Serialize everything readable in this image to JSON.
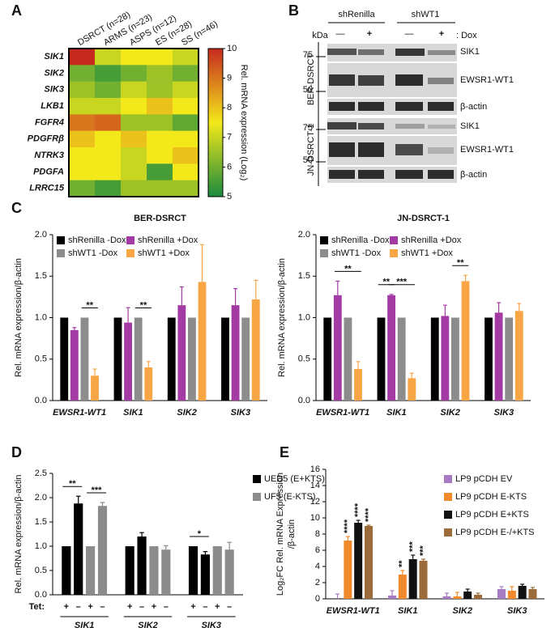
{
  "panels": [
    "A",
    "B",
    "C",
    "D",
    "E"
  ],
  "blot": {
    "groups": [
      "shRenilla",
      "shWT1"
    ],
    "kda": "kDa",
    "dox_signs": [
      "—",
      "+",
      "—",
      "+"
    ],
    "dox": ": Dox",
    "cell_lines": [
      {
        "name": "BER-DSRCT",
        "markers": [
          75,
          50
        ],
        "proteins": [
          "SIK1",
          "EWSR1-WT1",
          "β-actin"
        ]
      },
      {
        "name": "JN-DSRCT-1",
        "markers": [
          75,
          50
        ],
        "proteins": [
          "SIK1",
          "EWSR1-WT1",
          "β-actin"
        ]
      }
    ]
  },
  "chart_data": [
    {
      "type": "heatmap",
      "columns": [
        "DSRCT (n=28)",
        "ARMS (n=23)",
        "ASPS (n=12)",
        "ES (n=28)",
        "SS (n=46)"
      ],
      "rows": [
        "SIK1",
        "SIK2",
        "SIK3",
        "LKB1",
        "FGFR4",
        "PDGFRβ",
        "NTRK3",
        "PDGFA",
        "LRRC15"
      ],
      "values": [
        [
          10,
          7,
          7.5,
          7.5,
          7
        ],
        [
          6,
          5.5,
          6,
          6.5,
          6
        ],
        [
          6.5,
          6,
          7,
          6.5,
          7
        ],
        [
          7,
          7,
          7.5,
          8,
          7.5
        ],
        [
          9,
          9.2,
          6.5,
          6.5,
          5.8
        ],
        [
          8,
          7.5,
          8,
          7.5,
          7.5
        ],
        [
          7.5,
          7.5,
          7,
          7.5,
          8
        ],
        [
          7.5,
          7.5,
          7,
          5.5,
          7.5
        ],
        [
          6,
          5.5,
          6.5,
          6.5,
          6.5
        ]
      ],
      "zlim": [
        5,
        10
      ],
      "zticks": [
        10,
        9,
        8,
        7,
        6,
        5
      ],
      "colors": [
        "#1b8a3e",
        "#f3e81a",
        "#c62a1f"
      ],
      "colorbar_label": "Rel. mRNA expression (Log₂)"
    },
    {
      "type": "bar",
      "title": "BER-DSRCT",
      "ylabel": [
        "Rel. mRNA expression/β-actin"
      ],
      "categories": [
        "EWSR1-WT1",
        "SIK1",
        "SIK2",
        "SIK3"
      ],
      "ylim": [
        0,
        2
      ],
      "yticks": [
        {
          "value": 0,
          "label": "0.0"
        },
        {
          "value": 0.5,
          "label": "0.5"
        },
        {
          "value": 1,
          "label": "1.0"
        },
        {
          "value": 1.5,
          "label": "1.5"
        },
        {
          "value": 2,
          "label": "2.0"
        }
      ],
      "series": [
        {
          "name": "shRenilla -Dox",
          "color": "#000000",
          "values": [
            1,
            1,
            1,
            1
          ]
        },
        {
          "name": "shRenilla +Dox",
          "color": "#a43ba4",
          "values": [
            0.85,
            0.94,
            1.15,
            1.15
          ],
          "errors": [
            0.03,
            0.18,
            0.22,
            0.2
          ]
        },
        {
          "name": "shWT1 -Dox",
          "color": "#8c8c8c",
          "values": [
            1,
            1,
            1,
            1
          ]
        },
        {
          "name": "shWT1 +Dox",
          "color": "#f7a545",
          "values": [
            0.3,
            0.4,
            1.43,
            1.22
          ],
          "errors": [
            0.08,
            0.07,
            0.45,
            0.23
          ]
        }
      ],
      "annotations": [
        {
          "text": "**",
          "category": 0,
          "series": [
            2,
            3
          ]
        },
        {
          "text": "**",
          "category": 1,
          "series": [
            2,
            3
          ]
        }
      ]
    },
    {
      "type": "bar",
      "title": "JN-DSRCT-1",
      "ylabel": [
        "Rel. mRNA expression/β-actin"
      ],
      "categories": [
        "EWSR1-WT1",
        "SIK1",
        "SIK2",
        "SIK3"
      ],
      "ylim": [
        0,
        2
      ],
      "yticks": [
        {
          "value": 0,
          "label": "0.0"
        },
        {
          "value": 0.5,
          "label": "0.5"
        },
        {
          "value": 1,
          "label": "1.0"
        },
        {
          "value": 1.5,
          "label": "1.5"
        },
        {
          "value": 2,
          "label": "2.0"
        }
      ],
      "series": [
        {
          "name": "shRenilla -Dox",
          "color": "#000000",
          "values": [
            1,
            1,
            1,
            1
          ]
        },
        {
          "name": "shRenilla +Dox",
          "color": "#a43ba4",
          "values": [
            1.27,
            1.27,
            1.02,
            1.06
          ],
          "errors": [
            0.17,
            0.01,
            0.13,
            0.12
          ]
        },
        {
          "name": "shWT1 -Dox",
          "color": "#8c8c8c",
          "values": [
            1,
            1,
            1,
            1
          ]
        },
        {
          "name": "shWT1 +Dox",
          "color": "#f7a545",
          "values": [
            0.38,
            0.27,
            1.44,
            1.08
          ],
          "errors": [
            0.09,
            0.06,
            0.07,
            0.09
          ]
        }
      ],
      "annotations": [
        {
          "text": "**",
          "category": 0,
          "series": [
            1,
            3
          ]
        },
        {
          "text": "**",
          "category": 1,
          "series": [
            0,
            1
          ]
        },
        {
          "text": "***",
          "category": 1,
          "series": [
            1,
            3
          ]
        },
        {
          "text": "**",
          "category": 2,
          "series": [
            2,
            3
          ]
        }
      ]
    },
    {
      "type": "bar",
      "ylabel": [
        "Rel. mRNA expression/β-actin"
      ],
      "categories": [
        "SIK1",
        "SIK2",
        "SIK3"
      ],
      "condition_label": "Tet:",
      "conditions": [
        "+",
        "–"
      ],
      "ylim": [
        0,
        2.5
      ],
      "yticks": [
        {
          "value": 0,
          "label": "0.0"
        },
        {
          "value": 0.5,
          "label": "0.5"
        },
        {
          "value": 1,
          "label": "1.0"
        },
        {
          "value": 1.5,
          "label": "1.5"
        },
        {
          "value": 2,
          "label": "2.0"
        },
        {
          "value": 2.5,
          "label": "2.5"
        }
      ],
      "series": [
        {
          "name": "UED5 (E+KTS)",
          "color": "#000000",
          "values": [
            [
              1,
              1.88
            ],
            [
              1,
              1.2
            ],
            [
              1,
              0.83
            ]
          ],
          "errors": [
            [
              0,
              0.15
            ],
            [
              0,
              0.08
            ],
            [
              0,
              0.06
            ]
          ]
        },
        {
          "name": "UF5 (E-KTS)",
          "color": "#8c8c8c",
          "values": [
            [
              1,
              1.83
            ],
            [
              1,
              0.93
            ],
            [
              1,
              0.93
            ]
          ],
          "errors": [
            [
              0,
              0.07
            ],
            [
              0,
              0.08
            ],
            [
              0,
              0.15
            ]
          ]
        }
      ],
      "annotations": [
        {
          "text": "**",
          "category": 0,
          "series": 0
        },
        {
          "text": "***",
          "category": 0,
          "series": 1
        },
        {
          "text": "*",
          "category": 2,
          "series": 0
        }
      ]
    },
    {
      "type": "bar",
      "ylabel": [
        "Log₂FC Rel. mRNA Expression",
        "/β-actin"
      ],
      "categories": [
        "EWSR1-WT1",
        "SIK1",
        "SIK2",
        "SIK3"
      ],
      "ylim": [
        0,
        16
      ],
      "yticks": [
        0,
        2,
        4,
        6,
        8,
        10,
        12,
        14,
        16
      ],
      "series": [
        {
          "name": "LP9 pCDH EV",
          "color": "#a77bc2",
          "values": [
            0,
            0.4,
            0.3,
            1.2
          ],
          "errors": [
            0.6,
            0.6,
            0.4,
            0.3
          ]
        },
        {
          "name": "LP9 pCDH E-KTS",
          "color": "#f08a2c",
          "values": [
            7.2,
            3,
            0.3,
            1
          ],
          "errors": [
            0.5,
            0.5,
            0.5,
            0.5
          ],
          "marks": [
            "****",
            "**",
            null,
            null
          ]
        },
        {
          "name": "LP9 pCDH E+KTS",
          "color": "#111111",
          "values": [
            9.4,
            4.9,
            0.9,
            1.6
          ],
          "errors": [
            0.3,
            0.5,
            0.3,
            0.2
          ],
          "marks": [
            "****",
            "***",
            null,
            null
          ]
        },
        {
          "name": "LP9 pCDH E-/+KTS",
          "color": "#9b6b3a",
          "values": [
            9,
            4.7,
            0.5,
            1.2
          ],
          "errors": [
            0.1,
            0.2,
            0.2,
            0.2
          ],
          "marks": [
            "****",
            "***",
            null,
            null
          ]
        }
      ]
    }
  ]
}
